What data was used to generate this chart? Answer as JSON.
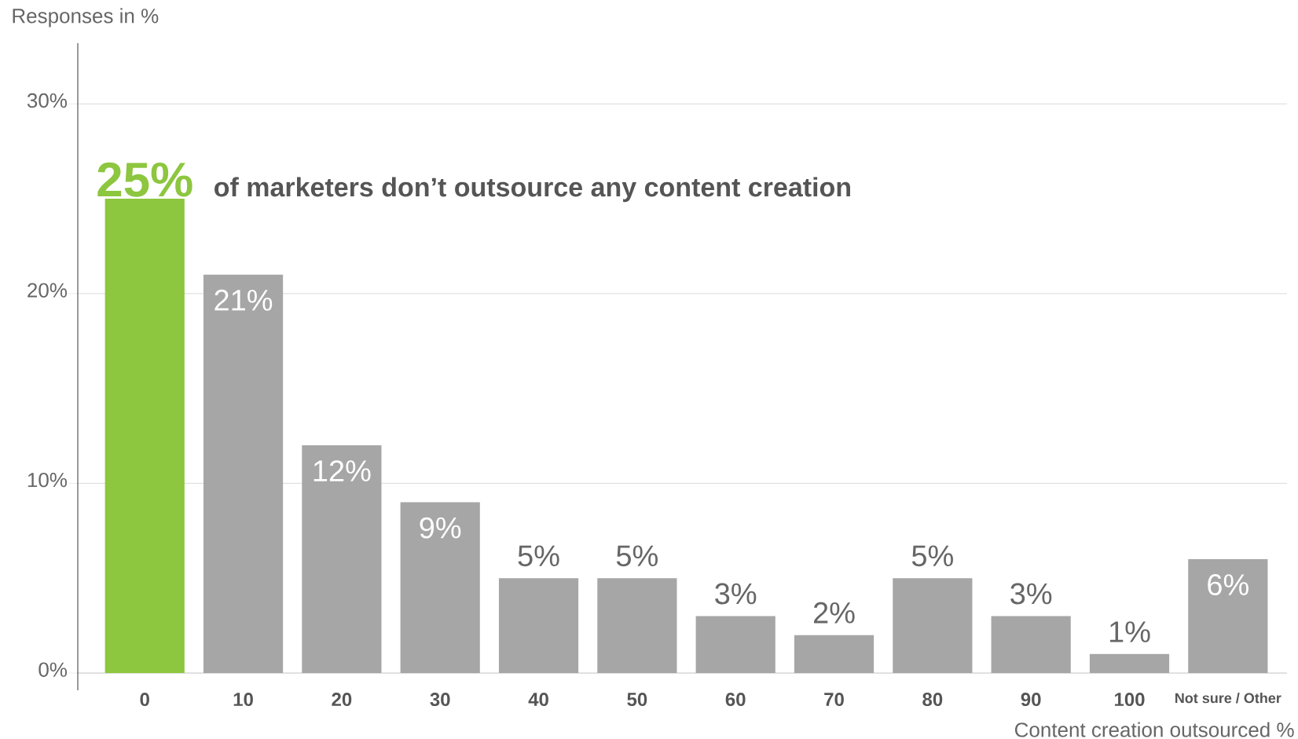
{
  "chart_data": {
    "type": "bar",
    "ylabel": "Responses in %",
    "xlabel": "Content creation outsourced %",
    "categories": [
      "0",
      "10",
      "20",
      "30",
      "40",
      "50",
      "60",
      "70",
      "80",
      "90",
      "100",
      "Not sure / Other"
    ],
    "values": [
      25,
      21,
      12,
      9,
      5,
      5,
      3,
      2,
      5,
      3,
      1,
      6
    ],
    "colors": [
      "#8dc63f",
      "#a6a6a6",
      "#a6a6a6",
      "#a6a6a6",
      "#a6a6a6",
      "#a6a6a6",
      "#a6a6a6",
      "#a6a6a6",
      "#a6a6a6",
      "#a6a6a6",
      "#a6a6a6",
      "#a6a6a6"
    ],
    "value_labels": [
      "25%",
      "21%",
      "12%",
      "9%",
      "5%",
      "5%",
      "3%",
      "2%",
      "5%",
      "3%",
      "1%",
      "6%"
    ],
    "annotations": [
      "of marketers don’t outsource any content creation"
    ],
    "ylim": [
      0,
      33.2
    ],
    "yticks": [
      {
        "value": 0,
        "label": "0%"
      },
      {
        "value": 10,
        "label": "10%"
      },
      {
        "value": 20,
        "label": "20%"
      },
      {
        "value": 30,
        "label": "30%"
      }
    ],
    "grid": "y"
  }
}
